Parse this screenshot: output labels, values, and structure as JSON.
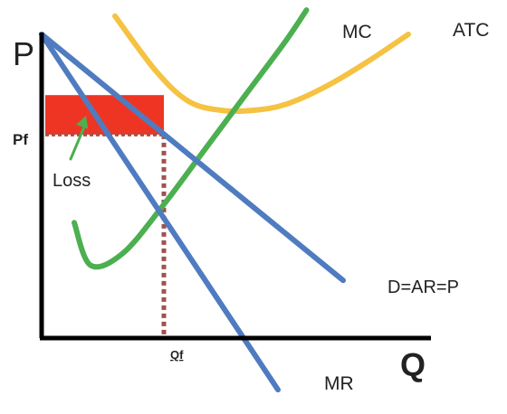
{
  "colors": {
    "mc": "#4CAF50",
    "atc": "#F5C242",
    "demand": "#4F7CC0",
    "mr": "#4F7CC0",
    "loss": "#EE3524",
    "guide": "#A0524D",
    "arrow": "#4CAF50",
    "axis": "#000000"
  },
  "chart_data": {
    "type": "line",
    "title": "",
    "xlabel": "Q",
    "ylabel": "P",
    "xlim": [
      0,
      10
    ],
    "ylim": [
      0,
      10
    ],
    "grid": false,
    "legend": "none",
    "tick_labels": {
      "x": [
        "Qf"
      ],
      "y": [
        "Pf"
      ]
    },
    "reference": {
      "Qf": 3.0,
      "Pf": 6.7
    },
    "series": [
      {
        "name": "D=AR=P",
        "kind": "line",
        "x": [
          0,
          7.4
        ],
        "y": [
          10,
          1.9
        ]
      },
      {
        "name": "MR",
        "kind": "line",
        "x": [
          0,
          5.8
        ],
        "y": [
          10,
          -1.7
        ]
      },
      {
        "name": "MC",
        "kind": "curve",
        "x": [
          0.8,
          1.2,
          2.0,
          3.0,
          4.0,
          5.0,
          6.0,
          6.5
        ],
        "y": [
          3.8,
          2.4,
          2.8,
          4.4,
          6.2,
          8.0,
          9.8,
          10.8
        ]
      },
      {
        "name": "ATC",
        "kind": "curve",
        "x": [
          1.8,
          2.8,
          3.6,
          4.4,
          5.2,
          6.0,
          7.0,
          8.0,
          9.0
        ],
        "y": [
          10.6,
          8.8,
          7.8,
          7.5,
          7.5,
          7.7,
          8.3,
          9.1,
          10.0
        ]
      }
    ],
    "annotations": [
      {
        "name": "Loss",
        "text": "Loss",
        "type": "shaded-rectangle",
        "x": [
          0,
          3.0
        ],
        "y": [
          6.7,
          8.0
        ]
      }
    ]
  }
}
